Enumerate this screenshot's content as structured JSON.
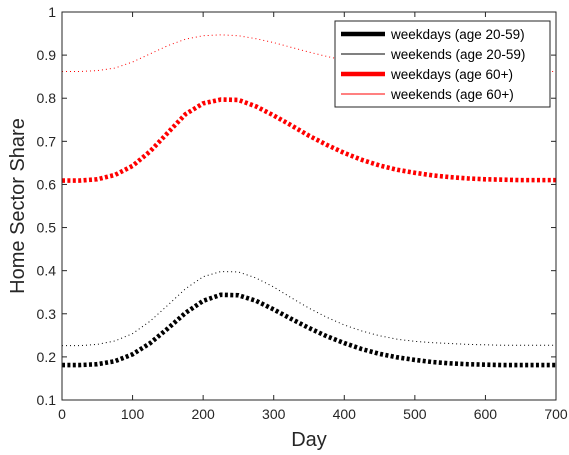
{
  "chart_data": {
    "type": "line",
    "title": "",
    "xlabel": "Day",
    "ylabel": "Home Sector Share",
    "xlim": [
      0,
      700
    ],
    "ylim": [
      0.1,
      1
    ],
    "x_ticks": [
      0,
      100,
      200,
      300,
      400,
      500,
      600,
      700
    ],
    "y_ticks": [
      0.1,
      0.2,
      0.3,
      0.4,
      0.5,
      0.6,
      0.7,
      0.8,
      0.9,
      1
    ],
    "y_tick_labels": [
      "0.1",
      "0.2",
      "0.3",
      "0.4",
      "0.5",
      "0.6",
      "0.7",
      "0.8",
      "0.9",
      "1"
    ],
    "grid": false,
    "legend_position": "top-right",
    "x": [
      0,
      25,
      50,
      75,
      100,
      125,
      150,
      175,
      200,
      225,
      250,
      275,
      300,
      325,
      350,
      375,
      400,
      425,
      450,
      475,
      500,
      525,
      550,
      575,
      600,
      625,
      650,
      675,
      700
    ],
    "series": [
      {
        "name": "weekdays (age 20-59)",
        "color": "#000000",
        "style": "thick-dotted",
        "values": [
          0.181,
          0.181,
          0.183,
          0.19,
          0.206,
          0.232,
          0.266,
          0.302,
          0.33,
          0.344,
          0.343,
          0.33,
          0.31,
          0.288,
          0.267,
          0.248,
          0.232,
          0.218,
          0.207,
          0.199,
          0.193,
          0.188,
          0.185,
          0.183,
          0.182,
          0.181,
          0.181,
          0.181,
          0.181
        ]
      },
      {
        "name": "weekends (age 20-59)",
        "color": "#000000",
        "style": "thin-dotted",
        "values": [
          0.226,
          0.226,
          0.229,
          0.237,
          0.254,
          0.283,
          0.32,
          0.358,
          0.386,
          0.398,
          0.397,
          0.383,
          0.362,
          0.337,
          0.313,
          0.292,
          0.274,
          0.26,
          0.249,
          0.241,
          0.236,
          0.233,
          0.231,
          0.229,
          0.228,
          0.227,
          0.227,
          0.227,
          0.227
        ]
      },
      {
        "name": "weekdays (age 60+)",
        "color": "#ff0000",
        "style": "thick-dotted",
        "values": [
          0.609,
          0.609,
          0.612,
          0.622,
          0.643,
          0.677,
          0.72,
          0.763,
          0.788,
          0.797,
          0.796,
          0.781,
          0.76,
          0.737,
          0.713,
          0.692,
          0.673,
          0.657,
          0.644,
          0.634,
          0.627,
          0.621,
          0.617,
          0.614,
          0.612,
          0.611,
          0.61,
          0.61,
          0.61
        ]
      },
      {
        "name": "weekends (age 60+)",
        "color": "#ff0000",
        "style": "thin-dotted",
        "values": [
          0.862,
          0.862,
          0.864,
          0.87,
          0.884,
          0.903,
          0.922,
          0.937,
          0.945,
          0.947,
          0.945,
          0.938,
          0.929,
          0.918,
          0.907,
          0.897,
          0.888,
          0.881,
          0.875,
          0.87,
          0.867,
          0.865,
          0.864,
          0.863,
          0.862,
          0.862,
          0.862,
          0.862,
          0.862
        ]
      }
    ]
  }
}
